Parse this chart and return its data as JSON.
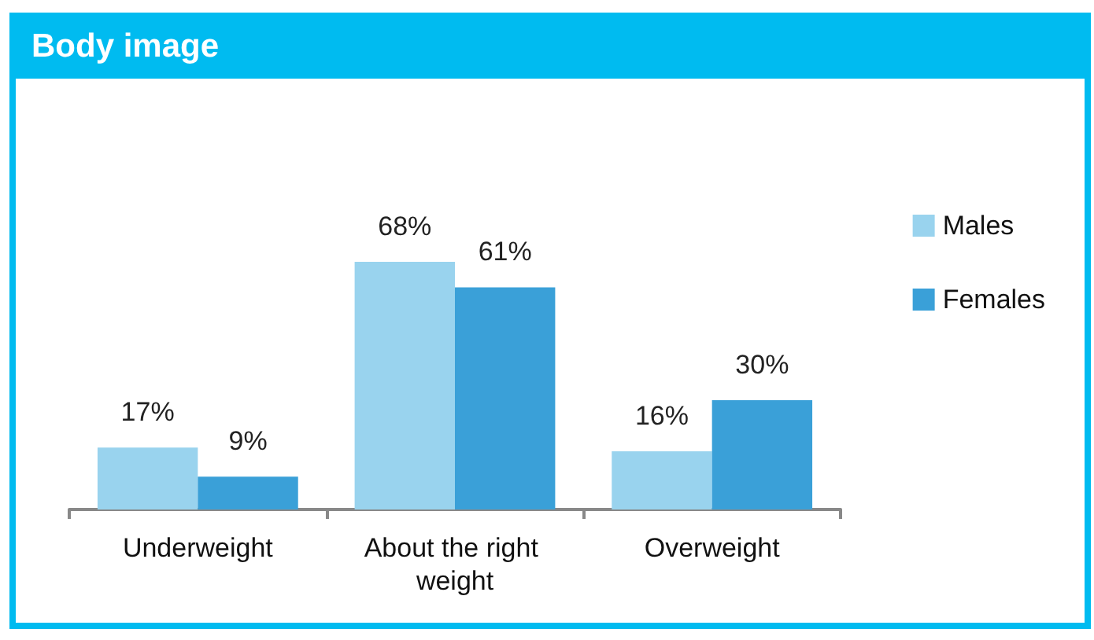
{
  "chart_data": {
    "type": "bar",
    "title": "Body image",
    "categories": [
      "Underweight",
      "About the right weight",
      "Overweight"
    ],
    "series": [
      {
        "name": "Males",
        "color": "#99d3ee",
        "values": [
          17,
          68,
          16
        ],
        "value_labels": [
          "17%",
          "68%",
          "16%"
        ]
      },
      {
        "name": "Females",
        "color": "#3aa0d8",
        "values": [
          9,
          61,
          30
        ],
        "value_labels": [
          "9%",
          "61%",
          "30%"
        ]
      }
    ],
    "legend": "right"
  }
}
